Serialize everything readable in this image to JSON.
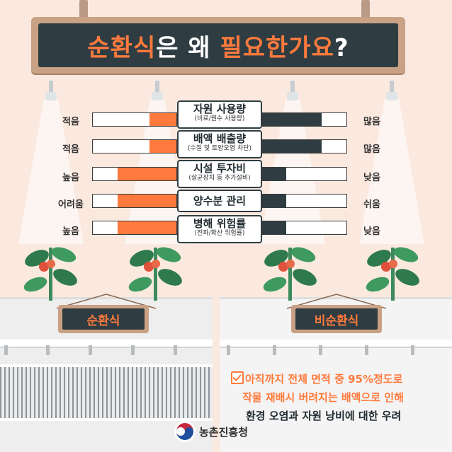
{
  "header": {
    "title_part1": "순환식",
    "title_part2": "은 왜 ",
    "title_part3": "필요한가요",
    "title_part4": "?"
  },
  "rows": [
    {
      "left": "적음",
      "title": "자원 사용량",
      "sub": "(비료/원수 사용량)",
      "right": "많음",
      "orange_level": 0.32,
      "dark_level": 0.7
    },
    {
      "left": "적음",
      "title": "배액 배출량",
      "sub": "(수질 및 토양오염 차단)",
      "right": "많음",
      "orange_level": 0.32,
      "dark_level": 0.7
    },
    {
      "left": "높음",
      "title": "시설 투자비",
      "sub": "(살균장치 등 추가설비)",
      "right": "낮음",
      "orange_level": 0.7,
      "dark_level": 0.28
    },
    {
      "left": "어려움",
      "title": "양수분 관리",
      "sub": "",
      "right": "쉬움",
      "orange_level": 0.7,
      "dark_level": 0.28
    },
    {
      "left": "높음",
      "title": "병해 위험률",
      "sub": "(전파/확산 위험률)",
      "right": "낮음",
      "orange_level": 0.7,
      "dark_level": 0.28
    }
  ],
  "labels": {
    "left_system": "순환식",
    "right_system": "비순환식"
  },
  "notes": {
    "line1": "아직까지 전체 면적 중 95%정도로",
    "line2": "작물 재배시 버려지는 배액으로 인해",
    "line3": "환경 오염과 자원 낭비에 대한 우려"
  },
  "footer": {
    "org": "농촌진흥청"
  },
  "colors": {
    "accent": "#ff7a3c",
    "dark": "#2f3d43",
    "background": "#fbe9df",
    "frame": "#c9a184"
  }
}
